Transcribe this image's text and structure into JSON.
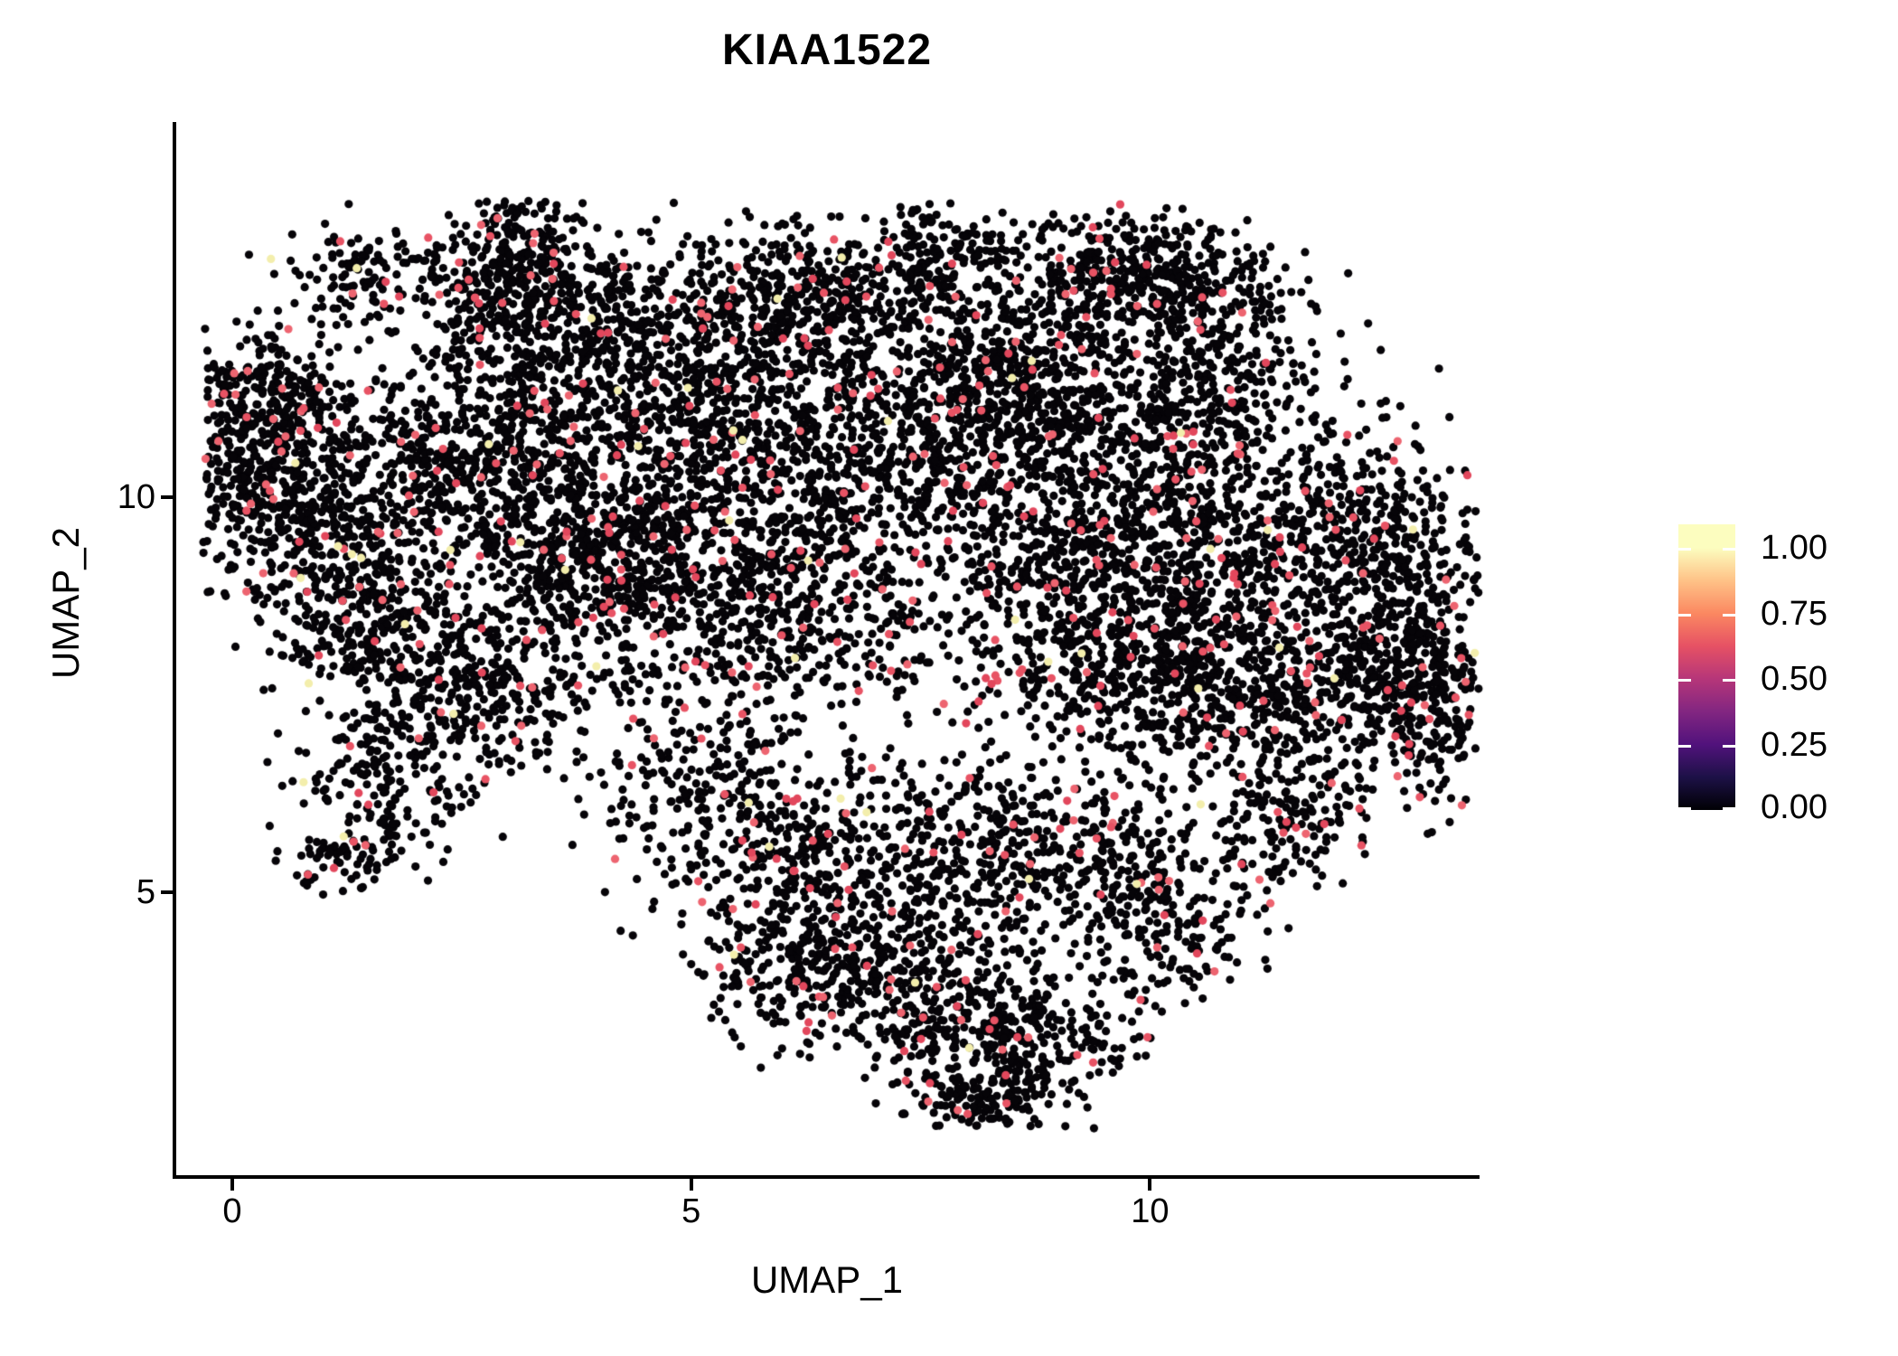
{
  "figure": {
    "background": "#FFFFFF"
  },
  "chart_data": {
    "type": "scatter",
    "title": "KIAA1522",
    "xlabel": "UMAP_1",
    "ylabel": "UMAP_2",
    "x_ticks": [
      0,
      5,
      10
    ],
    "y_ticks": [
      10,
      5
    ],
    "xlim": [
      -0.63,
      13.59
    ],
    "ylim": [
      1.38,
      14.74
    ],
    "grid": false,
    "axis_color": "#000000",
    "legend": {
      "position": "right",
      "tick_labels": [
        "1.00",
        "0.75",
        "0.50",
        "0.25",
        "0.00"
      ],
      "tick_values": [
        1.0,
        0.75,
        0.5,
        0.25,
        0.0
      ],
      "bar_value_range": [
        0,
        1.09
      ],
      "tick_mark_color": "#FFFFFF",
      "gradient_stops": [
        {
          "value": 0.0,
          "color": "#000004"
        },
        {
          "value": 0.125,
          "color": "#1D1147"
        },
        {
          "value": 0.25,
          "color": "#51127C"
        },
        {
          "value": 0.375,
          "color": "#822681"
        },
        {
          "value": 0.5,
          "color": "#B63679"
        },
        {
          "value": 0.625,
          "color": "#E65164"
        },
        {
          "value": 0.75,
          "color": "#FB8861"
        },
        {
          "value": 0.875,
          "color": "#FEC287"
        },
        {
          "value": 1.0,
          "color": "#FCFDBF"
        }
      ]
    },
    "point_style": {
      "radius_px": 4.6,
      "color_zero": "#060408",
      "colors_mid": [
        "#E2475C",
        "#E85364",
        "#ED6470"
      ],
      "color_high": "#F3EEAC",
      "frac_mid": 0.045,
      "frac_high": 0.0035
    },
    "extent": {
      "x": [
        -0.32,
        13.58
      ],
      "y": [
        2.0,
        13.75
      ]
    },
    "seed": 42,
    "cluster_format": [
      "x_center",
      "y_center",
      "x_sd",
      "y_sd",
      "n_points"
    ],
    "clusters": [
      [
        3.14,
        13.25,
        0.39,
        0.44,
        170
      ],
      [
        2.79,
        12.5,
        0.54,
        0.44,
        200
      ],
      [
        3.97,
        12.27,
        0.69,
        0.57,
        280
      ],
      [
        5.26,
        11.93,
        0.69,
        0.57,
        260
      ],
      [
        6.83,
        12.5,
        0.59,
        0.52,
        240
      ],
      [
        7.92,
        13.07,
        0.49,
        0.34,
        170
      ],
      [
        9.99,
        12.84,
        0.47,
        0.37,
        280
      ],
      [
        9.1,
        12.5,
        0.59,
        0.46,
        200
      ],
      [
        10.88,
        11.93,
        0.54,
        0.52,
        220
      ],
      [
        1.41,
        12.84,
        0.54,
        0.32,
        120
      ],
      [
        6.05,
        12.61,
        0.44,
        0.4,
        140
      ],
      [
        0.37,
        11.41,
        0.49,
        0.4,
        200
      ],
      [
        0.33,
        10.32,
        0.49,
        0.63,
        330
      ],
      [
        1.02,
        9.29,
        0.54,
        0.57,
        300
      ],
      [
        1.9,
        10.32,
        0.59,
        0.69,
        280
      ],
      [
        2.99,
        10.78,
        0.64,
        0.69,
        280
      ],
      [
        1.71,
        8.26,
        0.59,
        0.52,
        240
      ],
      [
        2.69,
        7.57,
        0.69,
        0.52,
        260
      ],
      [
        1.71,
        6.42,
        0.54,
        0.52,
        180
      ],
      [
        1.21,
        5.45,
        0.35,
        0.23,
        70
      ],
      [
        4.37,
        10.55,
        0.79,
        0.75,
        380
      ],
      [
        6.05,
        10.32,
        0.79,
        0.75,
        380
      ],
      [
        7.52,
        10.67,
        0.74,
        0.69,
        350
      ],
      [
        4.37,
        8.94,
        0.79,
        0.63,
        380
      ],
      [
        6.14,
        8.6,
        0.79,
        0.63,
        380
      ],
      [
        3.58,
        9.63,
        0.69,
        0.57,
        280
      ],
      [
        8.91,
        10.78,
        0.69,
        0.63,
        330
      ],
      [
        10.29,
        10.78,
        0.59,
        0.63,
        280
      ],
      [
        9.1,
        9.17,
        0.79,
        0.69,
        420
      ],
      [
        10.68,
        9.17,
        0.69,
        0.69,
        380
      ],
      [
        12.06,
        9.86,
        0.59,
        0.8,
        300
      ],
      [
        12.85,
        8.83,
        0.49,
        0.8,
        300
      ],
      [
        12.06,
        7.57,
        0.69,
        0.63,
        300
      ],
      [
        13.05,
        7.34,
        0.39,
        0.57,
        200
      ],
      [
        10.78,
        7.57,
        0.69,
        0.57,
        300
      ],
      [
        9.5,
        7.8,
        0.69,
        0.57,
        300
      ],
      [
        11.57,
        5.96,
        0.49,
        0.46,
        160
      ],
      [
        8.41,
        11.58,
        0.59,
        0.46,
        200
      ],
      [
        5.26,
        6.19,
        0.59,
        0.63,
        240
      ],
      [
        6.64,
        5.39,
        0.74,
        0.75,
        330
      ],
      [
        8.12,
        5.62,
        0.69,
        0.69,
        300
      ],
      [
        9.6,
        5.39,
        0.59,
        0.63,
        240
      ],
      [
        7.33,
        3.9,
        0.74,
        0.57,
        330
      ],
      [
        8.51,
        3.1,
        0.64,
        0.48,
        330
      ],
      [
        8.21,
        2.35,
        0.37,
        0.23,
        90
      ],
      [
        6.05,
        4.24,
        0.54,
        0.52,
        200
      ],
      [
        10.29,
        4.47,
        0.49,
        0.46,
        140
      ],
      [
        5.36,
        11.47,
        1.48,
        0.8,
        180
      ],
      [
        7.33,
        9.4,
        1.48,
        1.03,
        200
      ],
      [
        4.37,
        7.68,
        1.18,
        0.69,
        160
      ]
    ]
  }
}
